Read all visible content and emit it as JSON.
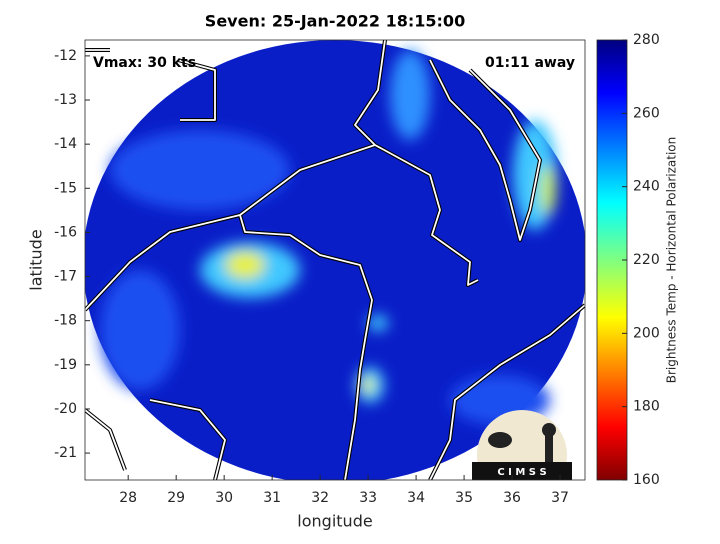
{
  "chart_data": {
    "type": "map",
    "title": "Seven: 25-Jan-2022 18:15:00",
    "annotations": [
      "Vmax: 30 kts",
      "01:11 away"
    ],
    "x_label": "longitude",
    "y_label": "latitude",
    "xlim": [
      27.1,
      37.52
    ],
    "xticks": [
      28,
      29,
      30,
      31,
      32,
      33,
      34,
      35,
      36,
      37
    ],
    "ylim": [
      -21.61,
      -11.64
    ],
    "yticks": [
      -21,
      -20,
      -19,
      -18,
      -17,
      -16,
      -15,
      -14,
      -13,
      -12
    ],
    "colorbar": {
      "label": "Brightness Temp - Horizontal Polarization",
      "clim": [
        160,
        280
      ],
      "ticks": [
        160,
        180,
        200,
        220,
        240,
        260,
        280
      ]
    },
    "logo": "C I M S S"
  }
}
